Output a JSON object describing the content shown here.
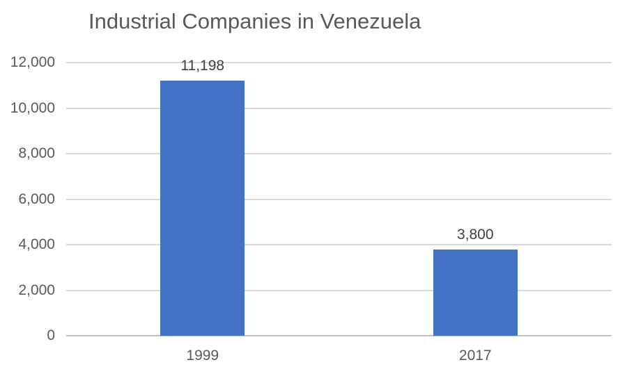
{
  "chart_data": {
    "type": "bar",
    "title": "Industrial Companies in Venezuela",
    "categories": [
      "1999",
      "2017"
    ],
    "values": [
      11198,
      3800
    ],
    "value_labels": [
      "11,198",
      "3,800"
    ],
    "ytick_step": 2000,
    "ytick_labels": [
      "0",
      "2,000",
      "4,000",
      "6,000",
      "8,000",
      "10,000",
      "12,000"
    ],
    "ylim": [
      0,
      12000
    ],
    "xlabel": "",
    "ylabel": "",
    "grid": "horizontal",
    "legend": "none",
    "colors": {
      "bar_fill": "#4472C4",
      "title_text": "#595959",
      "tick_text": "#595959",
      "data_label_text": "#404040",
      "gridline": "#D9D9D9",
      "axis_line": "#BFBFBF",
      "background": "#FFFFFF"
    }
  }
}
